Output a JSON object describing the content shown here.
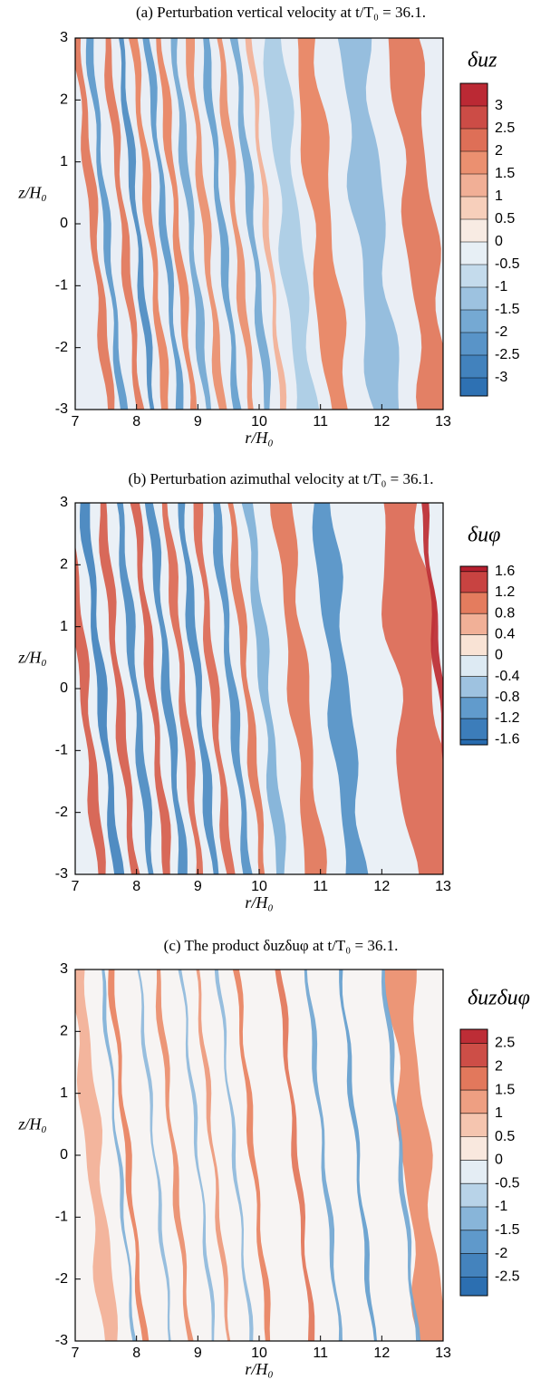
{
  "chart_data": [
    {
      "type": "heatmap",
      "title": "(a) Perturbation vertical velocity at t/T₀ = 36.1.",
      "xlabel": "r/H₀",
      "ylabel": "z/H₀",
      "xlim": [
        7,
        13
      ],
      "ylim": [
        -3,
        3
      ],
      "xticks": [
        7,
        8,
        9,
        10,
        11,
        12,
        13
      ],
      "yticks": [
        -3,
        -2,
        -1,
        0,
        1,
        2,
        3
      ],
      "colorbar": {
        "title": "δuz",
        "lim": [
          -3.4,
          3.5
        ],
        "ticks": [
          3,
          2.5,
          2,
          1.5,
          1,
          0.5,
          0,
          -0.5,
          -1,
          -1.5,
          -2,
          -2.5,
          -3
        ]
      }
    },
    {
      "type": "heatmap",
      "title": "(b) Perturbation azimuthal velocity at t/T₀ = 36.1.",
      "xlabel": "r/H₀",
      "ylabel": "z/H₀",
      "xlim": [
        7,
        13
      ],
      "ylim": [
        -3,
        3
      ],
      "xticks": [
        7,
        8,
        9,
        10,
        11,
        12,
        13
      ],
      "yticks": [
        -3,
        -2,
        -1,
        0,
        1,
        2,
        3
      ],
      "colorbar": {
        "title": "δuφ",
        "lim": [
          -1.7,
          1.7
        ],
        "ticks": [
          1.6,
          1.2,
          0.8,
          0.4,
          0,
          -0.4,
          -0.8,
          -1.2,
          -1.6
        ]
      }
    },
    {
      "type": "heatmap",
      "title": "(c) The product δuzδuφ at t/T₀ = 36.1.",
      "xlabel": "r/H₀",
      "ylabel": "z/H₀",
      "xlim": [
        7,
        13
      ],
      "ylim": [
        -3,
        3
      ],
      "xticks": [
        7,
        8,
        9,
        10,
        11,
        12,
        13
      ],
      "yticks": [
        -3,
        -2,
        -1,
        0,
        1,
        2,
        3
      ],
      "colorbar": {
        "title": "δuzδuφ",
        "lim": [
          -2.9,
          2.8
        ],
        "ticks": [
          2.5,
          2,
          1.5,
          1,
          0.5,
          0,
          -0.5,
          -1,
          -1.5,
          -2,
          -2.5
        ]
      }
    }
  ]
}
